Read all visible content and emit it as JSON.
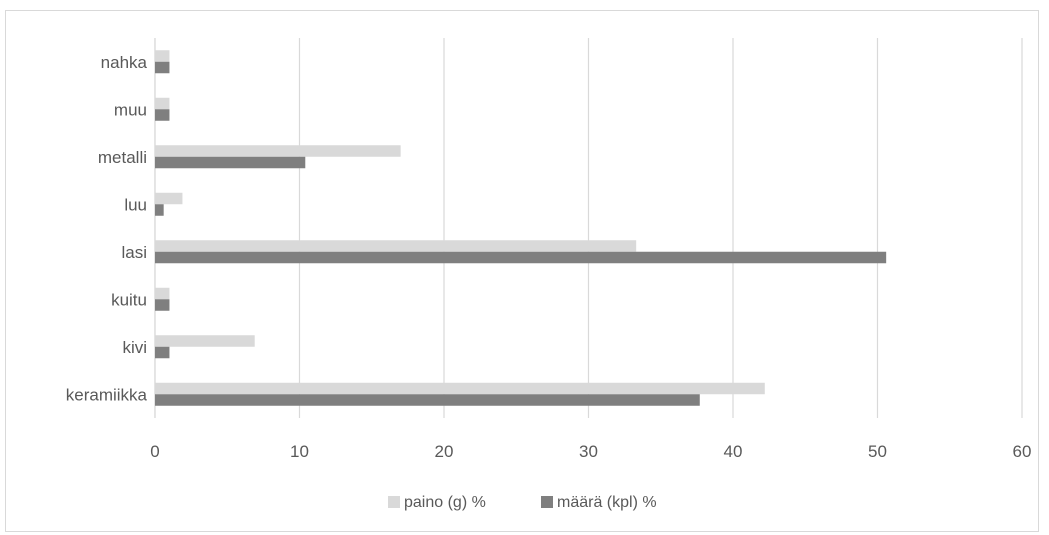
{
  "chart_data": {
    "type": "bar",
    "orientation": "horizontal",
    "categories": [
      "keramiikka",
      "kivi",
      "kuitu",
      "lasi",
      "luu",
      "metalli",
      "muu",
      "nahka"
    ],
    "series": [
      {
        "name": "paino (g) %",
        "color": "#d9d9d9",
        "values": [
          42.2,
          6.9,
          1.0,
          33.3,
          1.9,
          17.0,
          1.0,
          1.0
        ]
      },
      {
        "name": "määrä (kpl) %",
        "color": "#7f7f7f",
        "values": [
          37.7,
          1.0,
          1.0,
          50.6,
          0.6,
          10.4,
          1.0,
          1.0
        ]
      }
    ],
    "xlim": [
      0,
      60
    ],
    "xticks": [
      "0",
      "10",
      "20",
      "30",
      "40",
      "50",
      "60"
    ],
    "grid": "vertical",
    "legend": "bottom"
  }
}
